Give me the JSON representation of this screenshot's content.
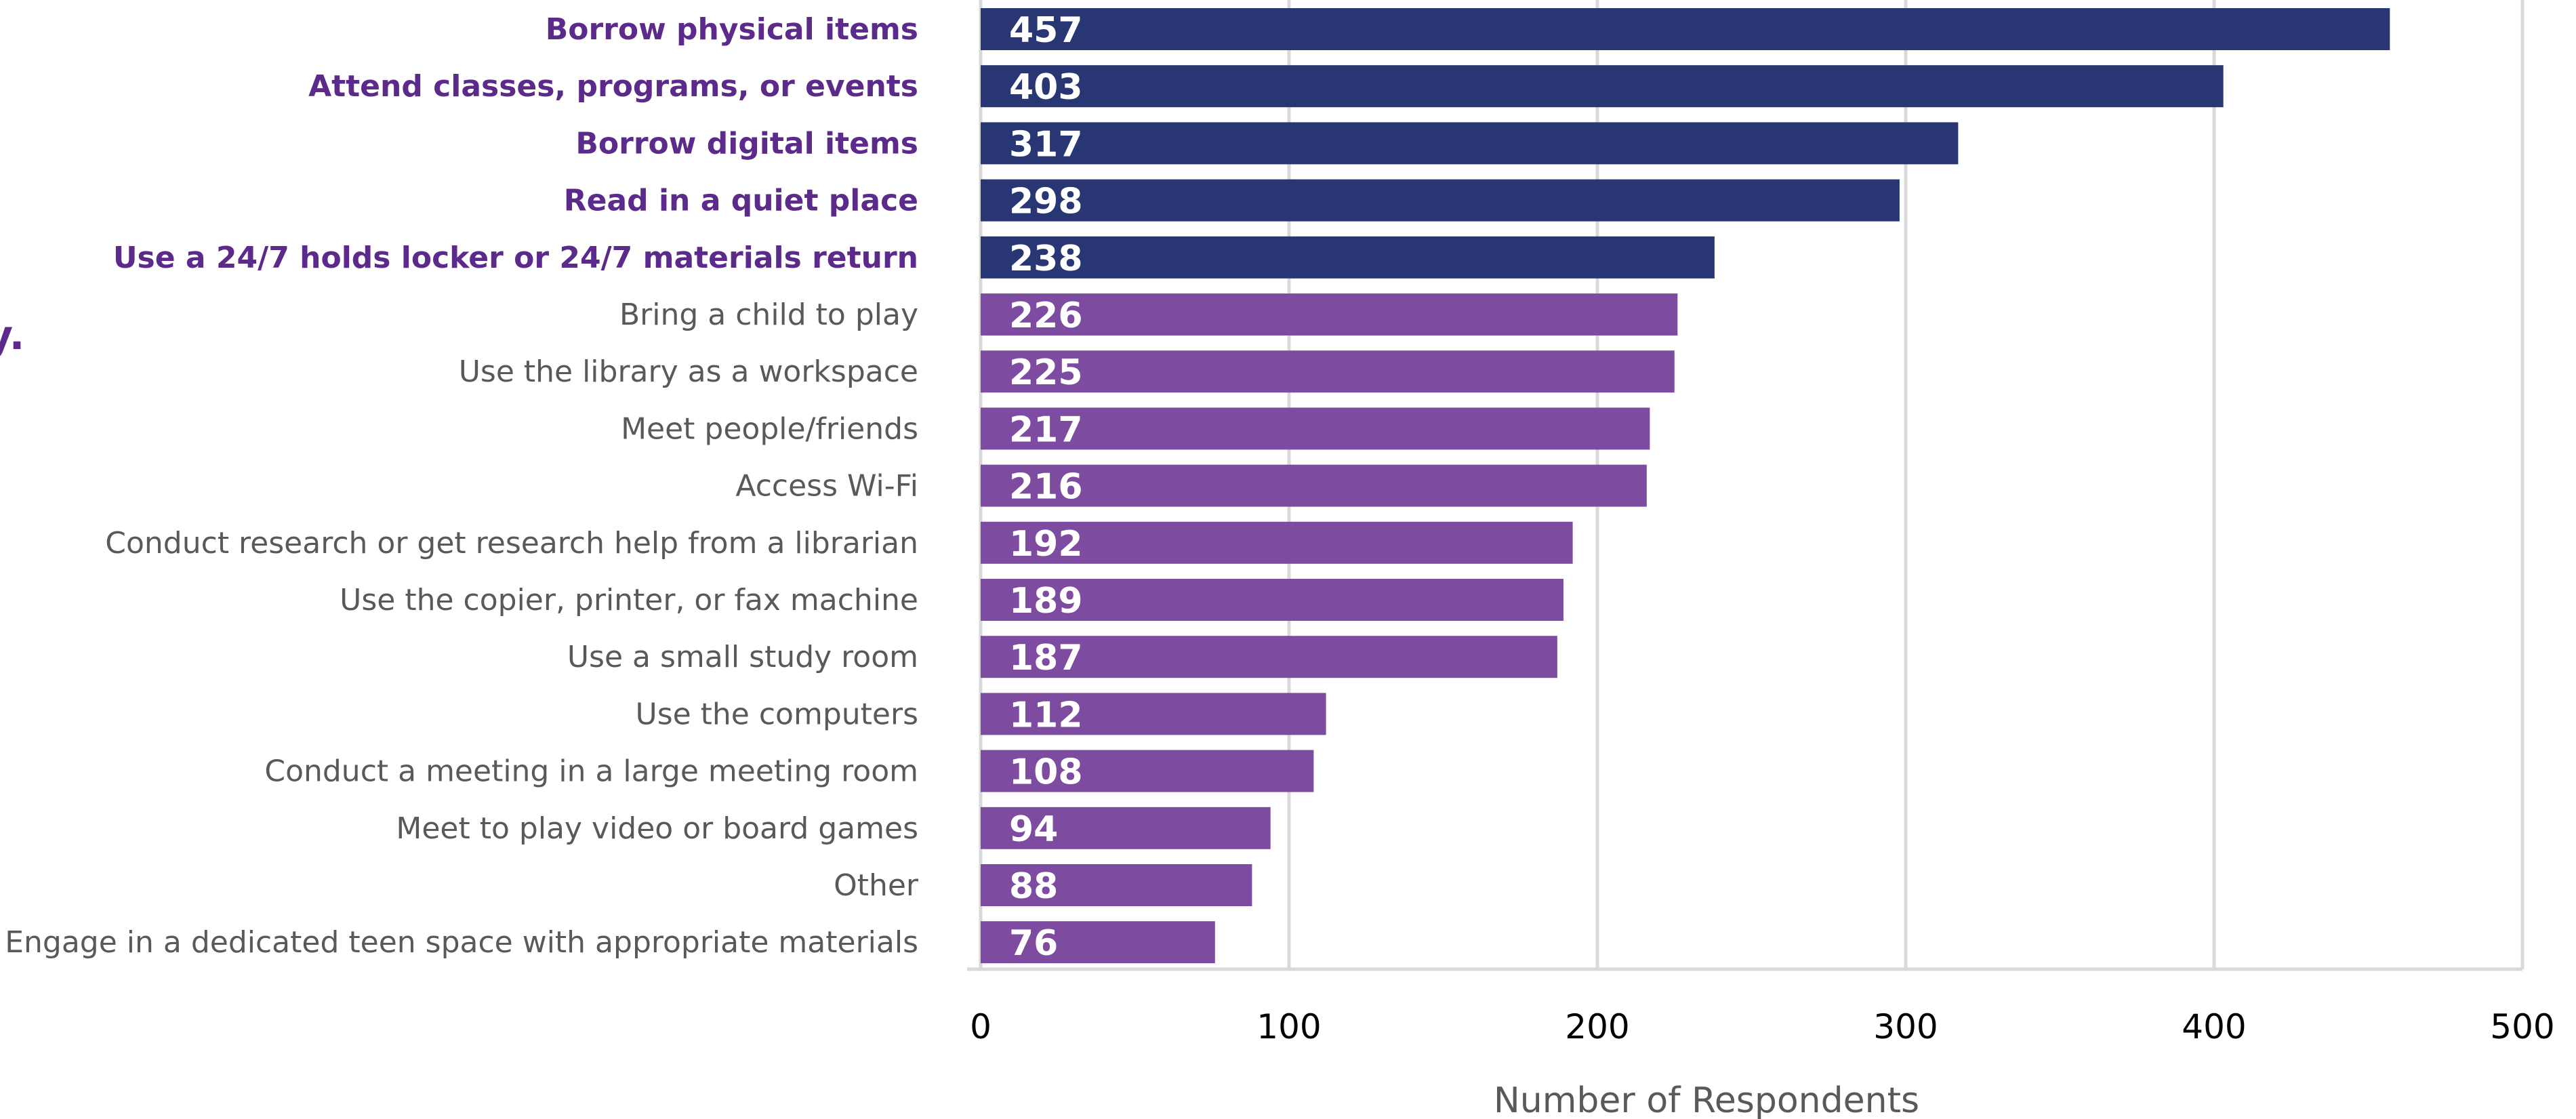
{
  "edge_text": "y.",
  "chart_data": {
    "type": "bar",
    "orientation": "horizontal",
    "categories": [
      "Borrow physical items",
      "Attend classes, programs, or events",
      "Borrow digital items",
      "Read in a quiet place",
      "Use a 24/7 holds locker or 24/7 materials return",
      "Bring a child to play",
      "Use the library as a workspace",
      "Meet people/friends",
      "Access Wi-Fi",
      "Conduct research or get research help from a librarian",
      "Use the copier, printer, or fax machine",
      "Use a small study room",
      "Use the computers",
      "Conduct a meeting in a large meeting room",
      "Meet to play video or board games",
      "Other",
      "Engage in a dedicated teen space with appropriate materials"
    ],
    "values": [
      457,
      403,
      317,
      298,
      238,
      226,
      225,
      217,
      216,
      192,
      189,
      187,
      112,
      108,
      94,
      88,
      76
    ],
    "highlight_top_n": 5,
    "xlabel": "Number of Respondents",
    "ylabel": "",
    "title": "",
    "xlim": [
      0,
      500
    ],
    "xticks": [
      0,
      100,
      200,
      300,
      400,
      500
    ],
    "grid": "vertical",
    "legend": "none",
    "colors": {
      "highlight_bar": "#283673",
      "bar": "#7d4b9f",
      "highlight_label": "#5b2a8a",
      "label": "#595959",
      "grid": "#d9d9d9"
    }
  }
}
